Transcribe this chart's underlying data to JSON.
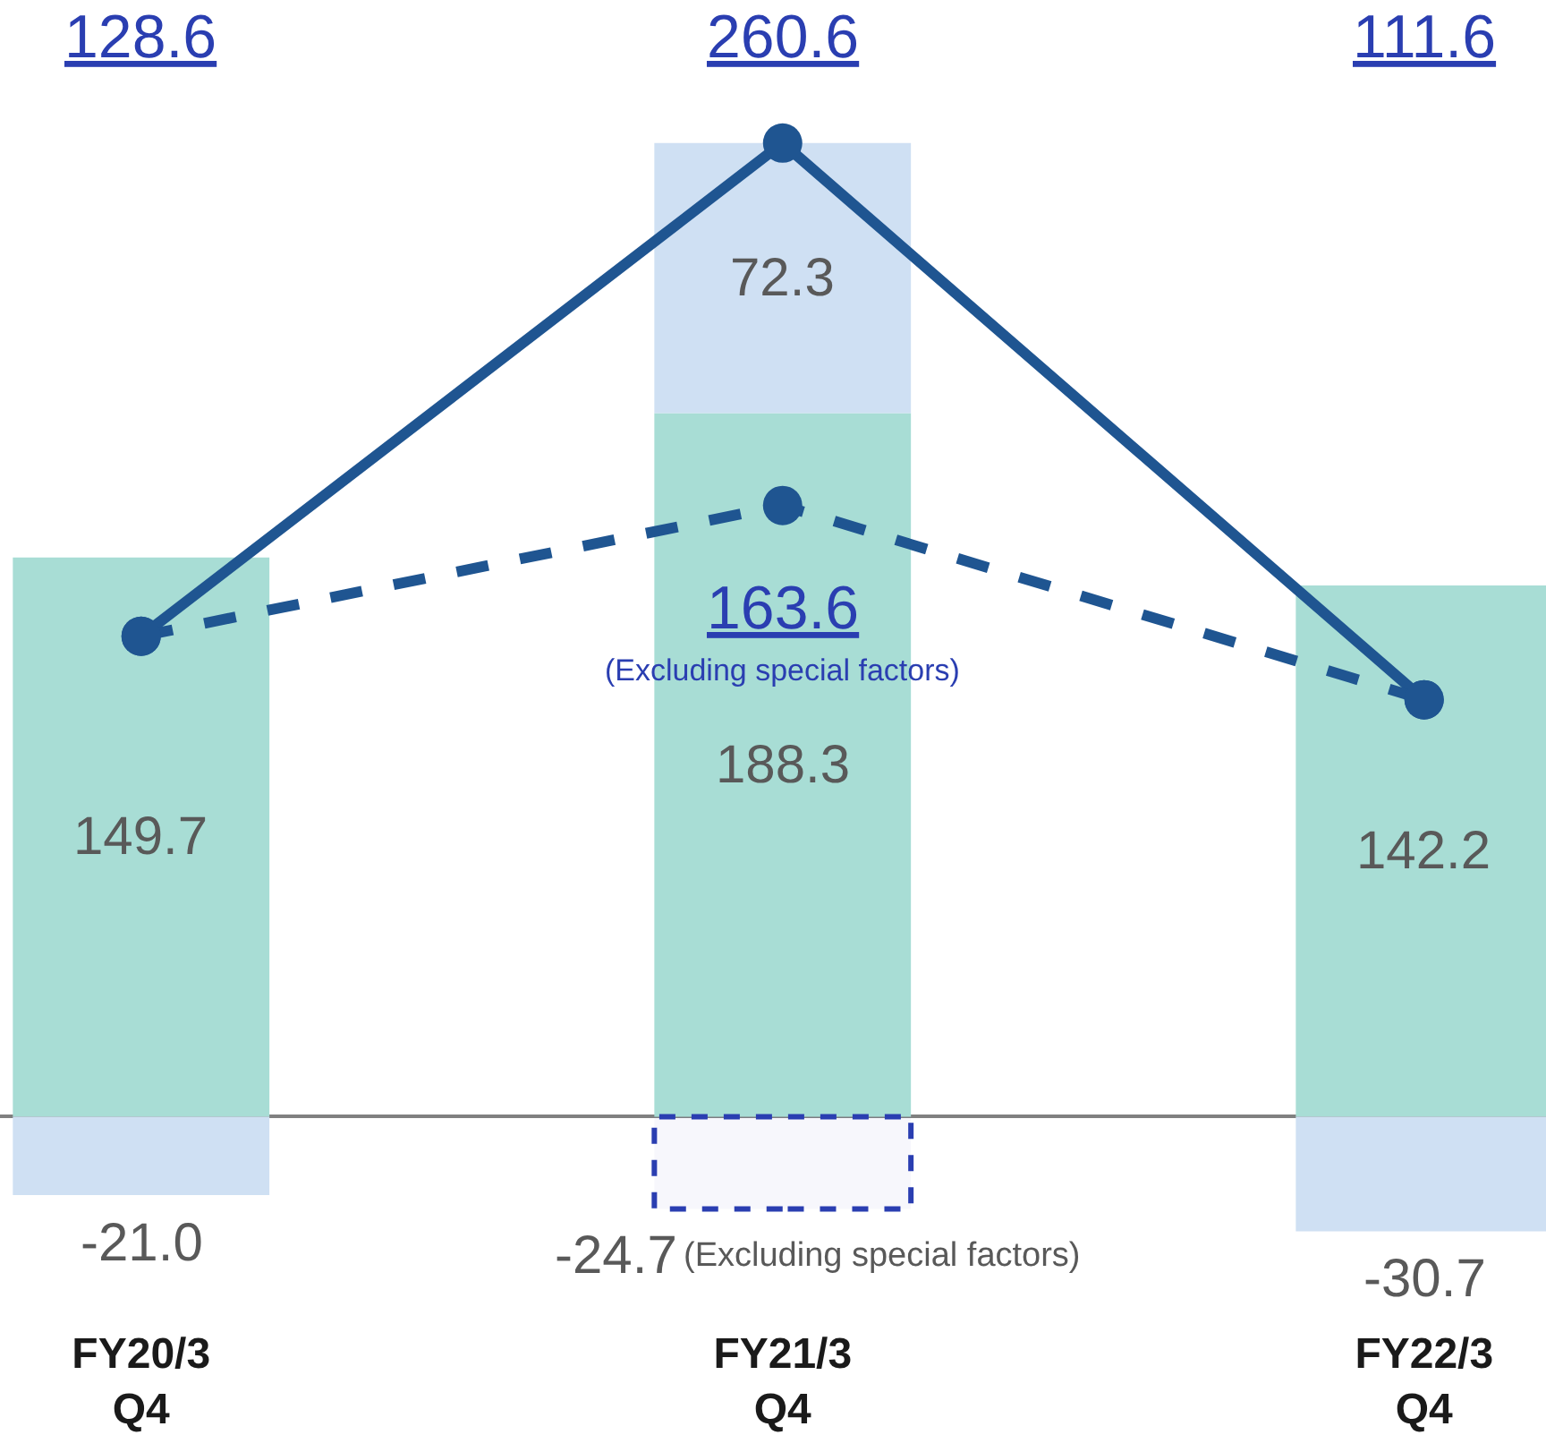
{
  "chart_data": {
    "type": "bar",
    "stacked": true,
    "categories": [
      "FY20/3\nQ4",
      "FY21/3\nQ4",
      "FY22/3\nQ4"
    ],
    "tick_labels": "x",
    "series": [
      {
        "color": "#a8ddd5",
        "values": [
          149.7,
          188.3,
          142.2
        ],
        "value_labels": [
          "149.7",
          "188.3",
          "142.2"
        ]
      },
      {
        "color": "#cfe0f3",
        "values": [
          -21.0,
          72.3,
          -30.7
        ],
        "value_labels": [
          "-21.0",
          "72.3",
          "-30.7"
        ]
      },
      {
        "name": "(Excluding special factors)",
        "color": "#2a3eb1",
        "line_style": "dashed",
        "values": [
          null,
          -24.7,
          null
        ],
        "value_labels": [
          null,
          "-24.7",
          null
        ]
      },
      {
        "type": "line",
        "color": "#1f5591",
        "marker": "circle",
        "line_style": "solid",
        "values": [
          128.6,
          260.6,
          111.6
        ],
        "value_labels": [
          null,
          "260.6",
          null
        ]
      },
      {
        "name": "(Excluding special factors)",
        "type": "line",
        "color": "#1f5591",
        "marker": "circle",
        "line_style": "dashed",
        "values": [
          128.6,
          163.6,
          111.6
        ],
        "value_labels": [
          null,
          "163.6",
          null
        ]
      }
    ],
    "annotations": [
      "128.6",
      "111.6"
    ]
  }
}
